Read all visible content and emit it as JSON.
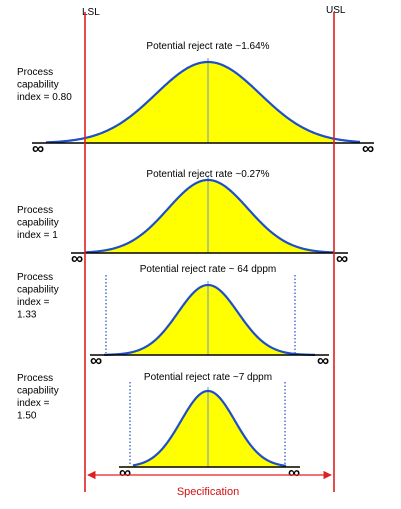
{
  "limits": {
    "lower": "LSL",
    "upper": "USL"
  },
  "specification_label": "Specification",
  "infinity_symbol": "∞",
  "colors": {
    "fill": "#ffff00",
    "curve": "#1f4fc8",
    "limit_line": "#e02020",
    "center_line": "#6f8fd8",
    "baseline": "#000000",
    "spec_text": "#d01010"
  },
  "panels": [
    {
      "title": "Potential reject rate ~1.64%",
      "capability_lines": [
        "Process",
        "capability",
        "index  = 0.80"
      ],
      "cpk": 0.8
    },
    {
      "title": "Potential reject rate ~0.27%",
      "capability_lines": [
        "Process",
        "capability",
        "index = 1"
      ],
      "cpk": 1.0
    },
    {
      "title": "Potential reject rate ~ 64 dppm",
      "capability_lines": [
        "Process",
        "capability",
        "index =",
        "1.33"
      ],
      "cpk": 1.33
    },
    {
      "title": "Potential reject rate ~7 dppm",
      "capability_lines": [
        "Process",
        "capability",
        "index =",
        "1.50"
      ],
      "cpk": 1.5
    }
  ]
}
